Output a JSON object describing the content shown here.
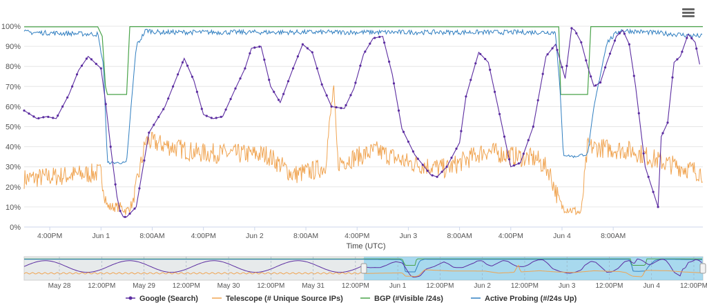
{
  "chart_data": {
    "type": "line",
    "xlabel": "Time (UTC)",
    "ylabel": "",
    "ylim": [
      0,
      100
    ],
    "y_ticks": [
      "0%",
      "10%",
      "20%",
      "30%",
      "40%",
      "50%",
      "60%",
      "70%",
      "80%",
      "90%",
      "100%"
    ],
    "x_range_hours": [
      0,
      106
    ],
    "x_ticks": [
      {
        "hour": 4,
        "label": "4:00PM"
      },
      {
        "hour": 12,
        "label": "Jun 1"
      },
      {
        "hour": 20,
        "label": "8:00AM"
      },
      {
        "hour": 28,
        "label": "4:00PM"
      },
      {
        "hour": 36,
        "label": "Jun 2"
      },
      {
        "hour": 44,
        "label": "8:00AM"
      },
      {
        "hour": 52,
        "label": "4:00PM"
      },
      {
        "hour": 60,
        "label": "Jun 3"
      },
      {
        "hour": 68,
        "label": "8:00AM"
      },
      {
        "hour": 76,
        "label": "4:00PM"
      },
      {
        "hour": 84,
        "label": "Jun 4"
      },
      {
        "hour": 92,
        "label": "8:00AM"
      }
    ],
    "series": [
      {
        "name": "Google (Search)",
        "color": "#5b2ca0",
        "markers": true,
        "x": [
          0,
          2,
          3.5,
          5,
          7,
          8.5,
          10,
          12,
          12.8,
          13.5,
          14.5,
          15,
          15.5,
          16,
          17.5,
          19.5,
          22,
          24,
          25,
          26.5,
          28,
          29.5,
          31,
          33,
          34.5,
          35.5,
          37,
          38.5,
          40,
          42,
          43.5,
          45,
          46.5,
          48,
          50,
          51.5,
          53,
          54.5,
          56,
          57.5,
          59,
          61,
          63.5,
          64.5,
          66,
          68,
          69,
          71,
          72.5,
          74,
          76,
          77.5,
          79.5,
          81.5,
          83,
          84.5,
          85.5,
          86,
          87,
          88,
          89,
          90,
          91,
          92.5,
          93.5,
          94.5,
          95.5,
          97,
          99,
          101,
          103,
          104.5
        ],
        "y": [
          58,
          54,
          55,
          54,
          66,
          78,
          85,
          79,
          60,
          40,
          15,
          8,
          5,
          5,
          10,
          47,
          60,
          76,
          84,
          73,
          56,
          54,
          55,
          69,
          79,
          89,
          90,
          70,
          62,
          79,
          91,
          87,
          71,
          60,
          59,
          69,
          86,
          94,
          95,
          76,
          49,
          36,
          26,
          25,
          30,
          42,
          65,
          87,
          82,
          60,
          30,
          32,
          50,
          85,
          91,
          74,
          99,
          98,
          92,
          80,
          70,
          72,
          82,
          95,
          98,
          91,
          70,
          30,
          10,
          5,
          5,
          55
        ],
        "extra_y": [
          45,
          82,
          85,
          96,
          92,
          81
        ]
      },
      {
        "name": "Telescope (# Unique Source IPs)",
        "color": "#f0a451",
        "markers": false,
        "x": [
          0,
          12,
          13,
          15,
          16,
          17,
          19,
          27,
          38,
          42,
          45,
          47,
          48.3,
          49,
          50,
          55,
          60,
          66,
          72,
          77,
          80,
          82,
          83,
          84,
          86,
          87,
          88,
          95,
          100,
          106
        ],
        "y": [
          24,
          27,
          10,
          10,
          8,
          12,
          43,
          37,
          36,
          26,
          28,
          30,
          69,
          32,
          33,
          38,
          32,
          29,
          38,
          35,
          34,
          28,
          18,
          10,
          8,
          7,
          40,
          38,
          32,
          27
        ]
      },
      {
        "name": "BGP (#Visible /24s)",
        "color": "#49a349",
        "markers": false,
        "x": [
          0,
          11.5,
          12.2,
          12.7,
          13,
          13.5,
          14.5,
          15.5,
          16,
          16.5,
          106
        ],
        "y": [
          99.7,
          99.7,
          95,
          70,
          66,
          66,
          66,
          66,
          66,
          99.8,
          99.8
        ],
        "extra": [
          [
            83.5,
            99.7
          ],
          [
            83.8,
            66
          ],
          [
            88,
            66
          ],
          [
            88.5,
            99.8
          ]
        ]
      },
      {
        "name": "Active Probing (#/24s Up)",
        "color": "#2f7ec0",
        "markers": false,
        "x": [
          0,
          11.5,
          12.4,
          13,
          15,
          16,
          16.7,
          17.5,
          19,
          21,
          83,
          83.7,
          84.2,
          86,
          87,
          88,
          89,
          91,
          93,
          106
        ],
        "y": [
          97,
          96,
          80,
          32,
          32,
          32,
          60,
          90,
          98,
          97,
          97,
          68,
          36,
          35,
          36,
          36,
          60,
          92,
          98,
          95
        ]
      }
    ],
    "navigator": {
      "x_ticks": [
        "May 28",
        "12:00PM",
        "May 29",
        "12:00PM",
        "May 30",
        "12:00PM",
        "May 31",
        "12:00PM",
        "Jun 1",
        "12:00PM",
        "Jun 2",
        "12:00PM",
        "Jun 3",
        "12:00PM",
        "Jun 4",
        "12:00PM"
      ]
    },
    "legend": {
      "placement": "bottom-center",
      "items": [
        "Google (Search)",
        "Telescope (# Unique Source IPs)",
        "BGP (#Visible /24s)",
        "Active Probing (#/24s Up)"
      ]
    }
  }
}
